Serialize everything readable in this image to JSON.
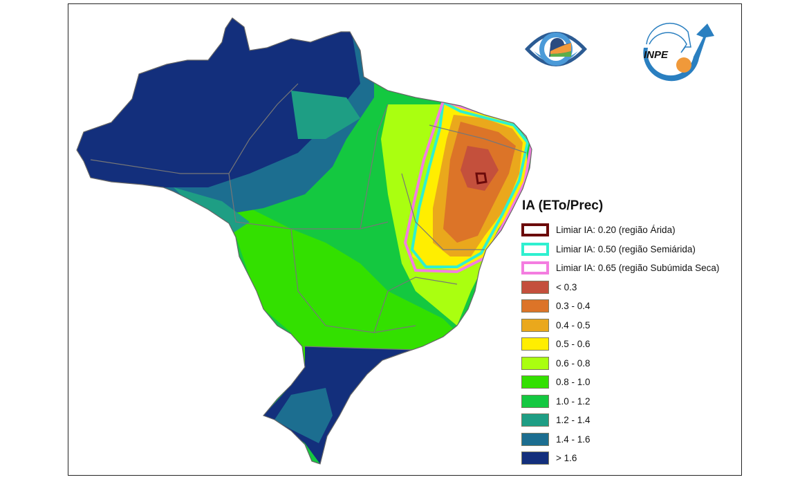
{
  "legend": {
    "title": "IA (ETo/Prec)",
    "thresholds": [
      {
        "label": "Limiar IA: 0.20 (região Árida)",
        "color": "#6b0a0a"
      },
      {
        "label": "Limiar IA: 0.50 (região Semiárida)",
        "color": "#2ff0d0"
      },
      {
        "label": "Limiar IA: 0.65 (região Subúmida Seca)",
        "color": "#f47de0"
      }
    ],
    "classes": [
      {
        "label": "< 0.3",
        "color": "#c4503c"
      },
      {
        "label": "0.3 - 0.4",
        "color": "#dc7428"
      },
      {
        "label": "0.4 - 0.5",
        "color": "#eaa81c"
      },
      {
        "label": "0.5 - 0.6",
        "color": "#ffee00"
      },
      {
        "label": "0.6 - 0.8",
        "color": "#aaff10"
      },
      {
        "label": "0.8 - 1.0",
        "color": "#33e000"
      },
      {
        "label": "1.0 - 1.2",
        "color": "#14c840"
      },
      {
        "label": "1.2 - 1.4",
        "color": "#1e9e84"
      },
      {
        "label": "1.4 - 1.6",
        "color": "#1c6e90"
      },
      {
        "label": "> 1.6",
        "color": "#132f7c"
      }
    ]
  },
  "logos": {
    "left": "eye-logo",
    "right": "INPE"
  }
}
